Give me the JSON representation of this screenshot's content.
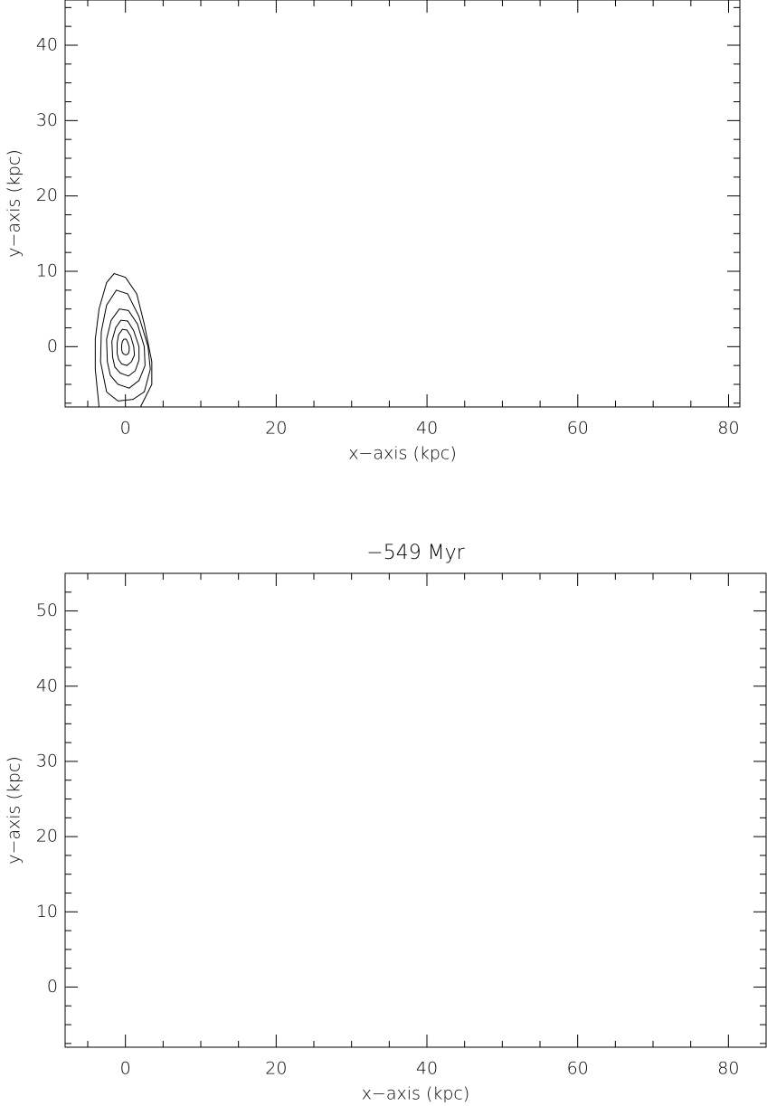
{
  "chart_data": [
    {
      "type": "contour",
      "xlabel": "x−axis (kpc)",
      "ylabel": "y−axis (kpc)",
      "xlim": [
        -8,
        81.5
      ],
      "ylim": [
        -8,
        46
      ],
      "xticks": [
        0,
        20,
        40,
        60,
        80
      ],
      "yticks": [
        0,
        10,
        20,
        30,
        40
      ],
      "series": [
        {
          "color": "#000000",
          "x": [
            -3.5,
            -4,
            -4,
            -3.5,
            -2.5,
            -1.5,
            0,
            1.5,
            2.5,
            3.5,
            3.5,
            2
          ],
          "values": [
            -8,
            -3,
            1,
            5,
            8.5,
            9.7,
            9.2,
            7,
            3,
            -2,
            -5,
            -8
          ]
        },
        {
          "color": "#000000",
          "x": [
            -2.5,
            -3.3,
            -3.2,
            -2.5,
            -1.2,
            0.3,
            1.8,
            3,
            3.3,
            2.5,
            1,
            -1,
            -2.5
          ],
          "values": [
            -6,
            -2,
            2,
            5.5,
            7.5,
            7,
            4,
            0,
            -3,
            -6,
            -7,
            -7.2,
            -6
          ]
        },
        {
          "color": "#000000",
          "x": [
            -2.4,
            -2.5,
            -1.9,
            -0.8,
            0.4,
            1.6,
            2.5,
            2.6,
            1.8,
            0.5,
            -1,
            -2,
            -2.4
          ],
          "values": [
            -2,
            1,
            3.5,
            5,
            4.8,
            3,
            0,
            -2.5,
            -4.5,
            -5.5,
            -5,
            -3.8,
            -2
          ]
        },
        {
          "color": "#000000",
          "x": [
            -1.7,
            -1.8,
            -1.3,
            -0.6,
            0.3,
            1.1,
            1.8,
            1.8,
            1.3,
            0.4,
            -0.7,
            -1.4,
            -1.7
          ],
          "values": [
            -1.4,
            0.7,
            2.5,
            3.5,
            3.4,
            2.1,
            0,
            -1.8,
            -3.2,
            -3.9,
            -3.5,
            -2.7,
            -1.4
          ]
        },
        {
          "color": "#000000",
          "x": [
            -1.1,
            -1.1,
            -0.9,
            -0.4,
            0.2,
            0.7,
            1.1,
            1.2,
            0.8,
            0.2,
            -0.5,
            -0.9,
            -1.1
          ],
          "values": [
            -0.9,
            0.5,
            1.6,
            2.3,
            2.2,
            1.4,
            0,
            -1.1,
            -2,
            -2.5,
            -2.3,
            -1.7,
            -0.9
          ]
        },
        {
          "color": "#000000",
          "x": [
            -0.5,
            -0.5,
            -0.4,
            -0.2,
            0.1,
            0.3,
            0.5,
            0.5,
            0.4,
            0.1,
            -0.2,
            -0.4,
            -0.5
          ],
          "values": [
            -0.4,
            0.2,
            0.7,
            1,
            1,
            0.6,
            0,
            -0.5,
            -0.9,
            -1.1,
            -1,
            -0.8,
            -0.4
          ]
        }
      ]
    },
    {
      "type": "contour",
      "title": "−549 Myr",
      "xlabel": "x−axis (kpc)",
      "ylabel": "y−axis (kpc)",
      "xlim": [
        -8,
        85
      ],
      "ylim": [
        -8,
        55
      ],
      "xticks": [
        0,
        20,
        40,
        60,
        80
      ],
      "yticks": [
        0,
        10,
        20,
        30,
        40,
        50
      ],
      "series": []
    }
  ]
}
